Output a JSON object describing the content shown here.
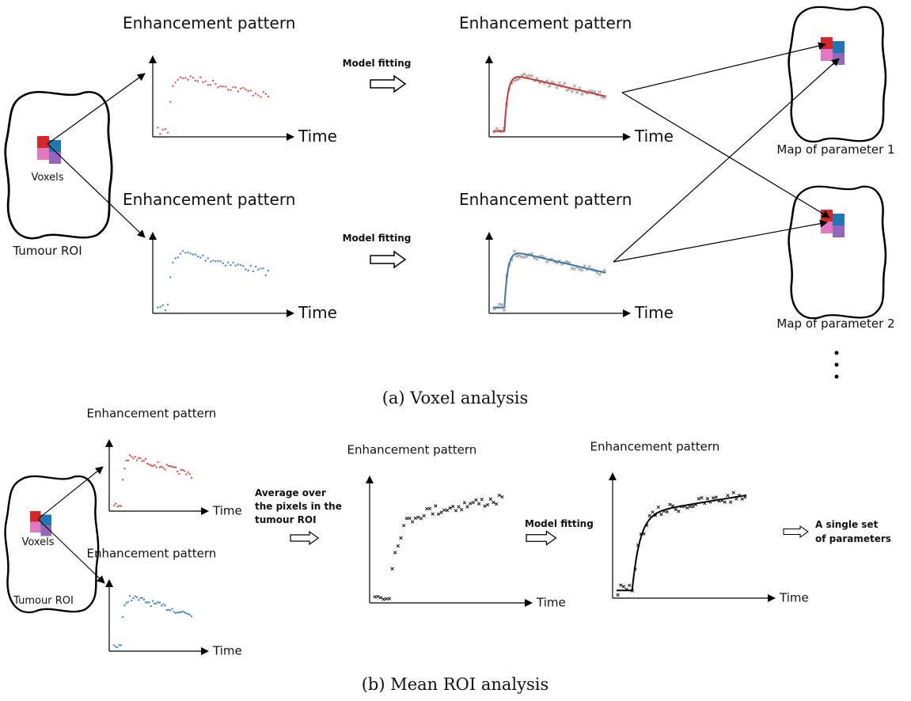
{
  "panel_a": {
    "caption": "(a) Voxel analysis",
    "roi": {
      "label": "Tumour ROI",
      "voxels_label": "Voxels"
    },
    "plots": [
      {
        "title": "Enhancement pattern",
        "x_label": "Time"
      },
      {
        "title": "Enhancement pattern",
        "x_label": "Time"
      }
    ],
    "fitting": [
      {
        "label": "Model fitting"
      },
      {
        "label": "Model fitting"
      }
    ],
    "fitted_plots": [
      {
        "title": "Enhancement pattern",
        "x_label": "Time"
      },
      {
        "title": "Enhancement pattern",
        "x_label": "Time"
      }
    ],
    "maps": [
      {
        "label": "Map of parameter 1"
      },
      {
        "label": "Map of parameter 2"
      }
    ]
  },
  "panel_b": {
    "caption": "(b) Mean ROI analysis",
    "roi": {
      "label": "Tumour ROI",
      "voxels_label": "Voxels"
    },
    "plots": [
      {
        "title": "Enhancement pattern",
        "x_label": "Time"
      },
      {
        "title": "Enhancement pattern",
        "x_label": "Time"
      }
    ],
    "average_label": [
      "Average over",
      "the pixels in the",
      "tumour ROI"
    ],
    "mean_plot": {
      "title": "Enhancement pattern",
      "x_label": "Time"
    },
    "fitting": {
      "label": "Model fitting"
    },
    "fitted_plot": {
      "title": "Enhancement pattern",
      "x_label": "Time"
    },
    "result": [
      "A single set",
      "of parameters"
    ]
  }
}
